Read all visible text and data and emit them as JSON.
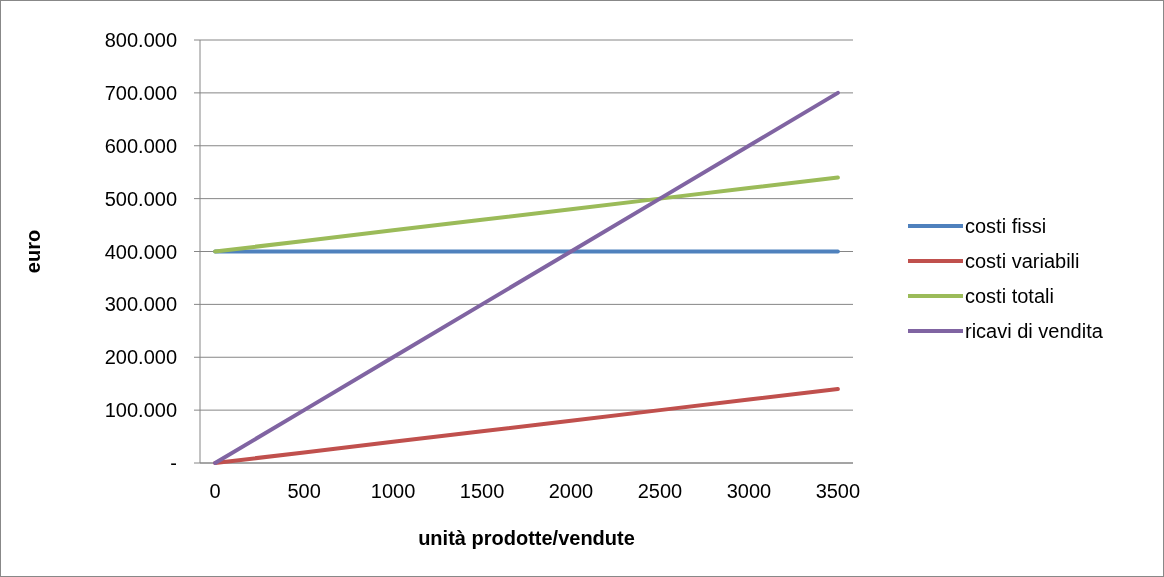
{
  "chart_data": {
    "type": "line",
    "xlabel": "unità prodotte/vendute",
    "ylabel": "euro",
    "categories": [
      "0",
      "500",
      "1000",
      "1500",
      "2000",
      "2500",
      "3000",
      "3500"
    ],
    "series": [
      {
        "name": "costi fissi",
        "color": "#4f81bd",
        "values": [
          400000,
          400000,
          400000,
          400000,
          400000,
          400000,
          400000,
          400000
        ]
      },
      {
        "name": "costi variabili",
        "color": "#c0504d",
        "values": [
          0,
          20000,
          40000,
          60000,
          80000,
          100000,
          120000,
          140000
        ]
      },
      {
        "name": "costi totali",
        "color": "#9bbb59",
        "values": [
          400000,
          420000,
          440000,
          460000,
          480000,
          500000,
          520000,
          540000
        ]
      },
      {
        "name": "ricavi di vendita",
        "color": "#8064a2",
        "values": [
          0,
          100000,
          200000,
          300000,
          400000,
          500000,
          600000,
          700000
        ]
      }
    ],
    "ylim": [
      0,
      800000
    ],
    "yticks": [
      {
        "value": 0,
        "label": "-"
      },
      {
        "value": 100000,
        "label": "100.000"
      },
      {
        "value": 200000,
        "label": "200.000"
      },
      {
        "value": 300000,
        "label": "300.000"
      },
      {
        "value": 400000,
        "label": "400.000"
      },
      {
        "value": 500000,
        "label": "500.000"
      },
      {
        "value": 600000,
        "label": "600.000"
      },
      {
        "value": 700000,
        "label": "700.000"
      },
      {
        "value": 800000,
        "label": "800.000"
      }
    ],
    "grid": "y",
    "legend": "right",
    "marker": "none",
    "line_style": "solid"
  }
}
